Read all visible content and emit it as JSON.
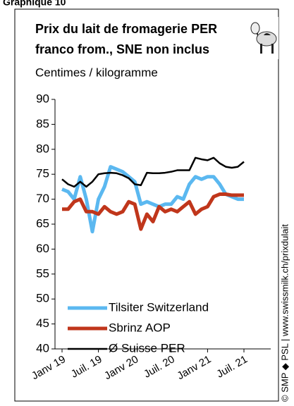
{
  "chart_data": {
    "type": "line",
    "figure_label": "Graphique 10",
    "title": [
      "Prix du lait de fromagerie PER",
      "franco from., SNE non inclus"
    ],
    "subtitle": "Centimes / kilogramme",
    "source": "© SMP ◆ PSL  |  www.swissmilk.ch/prixdulait",
    "categories": [
      "Janv 19",
      null,
      null,
      null,
      null,
      null,
      "Juil. 19",
      null,
      null,
      null,
      null,
      null,
      "Janv 20",
      null,
      null,
      null,
      null,
      null,
      "Juil. 20",
      null,
      null,
      null,
      null,
      null,
      "Janv 21",
      null,
      null,
      null,
      null,
      null,
      "Juil. 21"
    ],
    "series": [
      {
        "name": "Tilsiter Switzerland",
        "color": "#5bb8f0",
        "width": 5,
        "values": [
          72,
          71.5,
          70,
          74.5,
          70,
          63.5,
          70,
          72.5,
          76.5,
          76,
          75.5,
          74.5,
          73.5,
          69,
          69.5,
          69,
          68.5,
          69,
          69,
          70.5,
          70,
          73,
          74.5,
          74,
          74.5,
          74.5,
          73,
          71,
          70.5,
          70,
          70
        ]
      },
      {
        "name": "Sbrinz AOP",
        "color": "#c0361b",
        "width": 5,
        "values": [
          68,
          68,
          69.5,
          70,
          67.5,
          67.5,
          67,
          68.5,
          67.5,
          67,
          67.5,
          69.5,
          69,
          64,
          67,
          65.5,
          68.5,
          67.5,
          68,
          67.5,
          68.5,
          69.5,
          67,
          68,
          68.5,
          70.5,
          71,
          71,
          70.8,
          70.8,
          70.8
        ]
      },
      {
        "name": "Ø Suisse PER",
        "color": "#000000",
        "width": 2.5,
        "values": [
          74,
          73,
          72.5,
          73.5,
          72.5,
          73.5,
          75,
          75.2,
          75.3,
          75.2,
          74.8,
          74.2,
          73,
          72.8,
          75.3,
          75.2,
          75.2,
          75.3,
          75.5,
          75.8,
          75.8,
          75.8,
          78.3,
          78,
          77.8,
          78.3,
          77.2,
          76.5,
          76.3,
          76.5,
          77.5
        ]
      }
    ],
    "ylim": [
      40,
      90
    ],
    "yticks": [
      40,
      45,
      50,
      55,
      60,
      65,
      70,
      75,
      80,
      85,
      90
    ],
    "grid": false
  }
}
